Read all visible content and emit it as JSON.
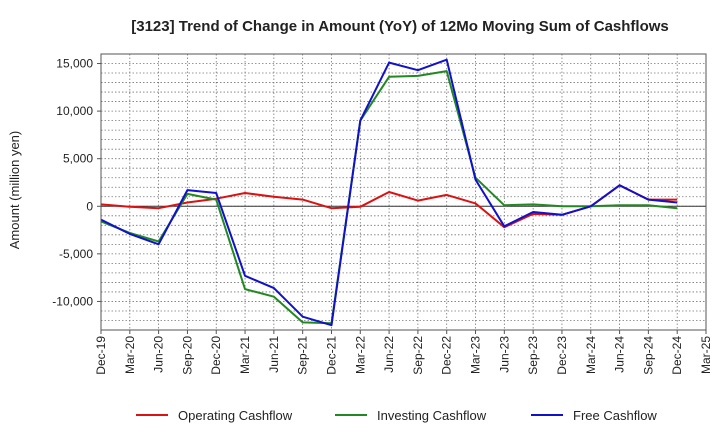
{
  "chart_data": {
    "type": "line",
    "title": "[3123]  Trend of Change in Amount (YoY) of 12Mo Moving Sum of Cashflows",
    "xlabel": "",
    "ylabel": "Amount (million yen)",
    "ylim": [
      -13000,
      16000
    ],
    "yticks": [
      15000,
      10000,
      5000,
      0,
      -5000,
      -10000
    ],
    "ytick_labels": [
      "15,000",
      "10,000",
      "5,000",
      "0",
      "-5,000",
      "-10,000"
    ],
    "grid": true,
    "legend_position": "bottom",
    "categories": [
      "Dec-19",
      "Mar-20",
      "Jun-20",
      "Sep-20",
      "Dec-20",
      "Mar-21",
      "Jun-21",
      "Sep-21",
      "Dec-21",
      "Mar-22",
      "Jun-22",
      "Sep-22",
      "Dec-22",
      "Mar-23",
      "Jun-23",
      "Sep-23",
      "Dec-23",
      "Mar-24",
      "Jun-24",
      "Sep-24",
      "Dec-24",
      "Mar-25"
    ],
    "series": [
      {
        "name": "Operating Cashflow",
        "color": "#dd1111",
        "values": [
          200,
          -50,
          -200,
          400,
          800,
          1400,
          1000,
          700,
          -200,
          -50,
          1500,
          600,
          1200,
          300,
          -2200,
          -800,
          -900,
          0,
          2200,
          700,
          700,
          null
        ]
      },
      {
        "name": "Investing Cashflow",
        "color": "#228822",
        "values": [
          -1600,
          -2800,
          -3700,
          1300,
          700,
          -8700,
          -9500,
          -12200,
          -12300,
          9000,
          13600,
          13700,
          14200,
          3000,
          100,
          200,
          0,
          0,
          100,
          100,
          -200,
          null
        ]
      },
      {
        "name": "Free Cashflow",
        "color": "#1111cc",
        "values": [
          -1400,
          -2900,
          -4000,
          1700,
          1400,
          -7300,
          -8600,
          -11600,
          -12500,
          9000,
          15100,
          14300,
          15400,
          2800,
          -2100,
          -600,
          -900,
          0,
          2200,
          700,
          400,
          null
        ]
      }
    ]
  }
}
